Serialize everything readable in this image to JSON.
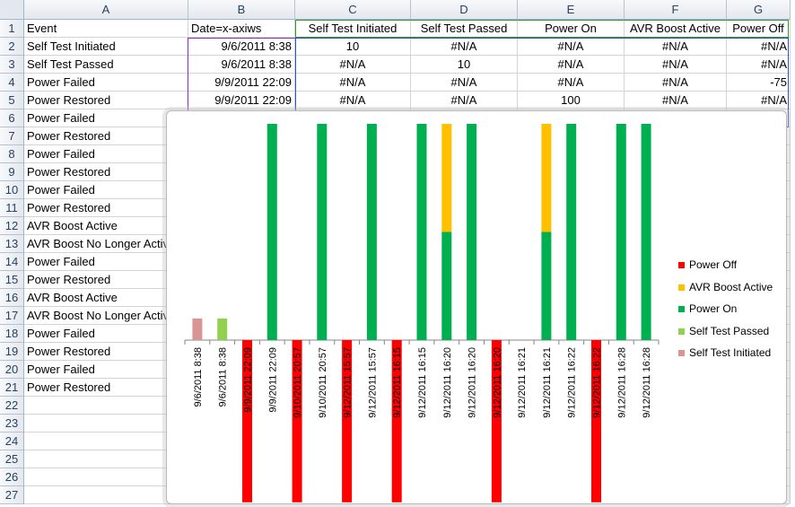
{
  "sheet": {
    "columns": [
      "A",
      "B",
      "C",
      "D",
      "E",
      "F",
      "G"
    ],
    "rows": [
      [
        "Event",
        "Date=x-axiws",
        "Self Test Initiated",
        "Self Test Passed",
        "Power On",
        "AVR Boost Active",
        "Power Off"
      ],
      [
        "Self Test Initiated",
        "9/6/2011 8:38",
        "10",
        "#N/A",
        "#N/A",
        "#N/A",
        "#N/A"
      ],
      [
        "Self Test Passed",
        "9/6/2011 8:38",
        "#N/A",
        "10",
        "#N/A",
        "#N/A",
        "#N/A"
      ],
      [
        "Power Failed",
        "9/9/2011 22:09",
        "#N/A",
        "#N/A",
        "#N/A",
        "#N/A",
        "-75"
      ],
      [
        "Power Restored",
        "9/9/2011 22:09",
        "#N/A",
        "#N/A",
        "100",
        "#N/A",
        "#N/A"
      ],
      [
        "Power Failed",
        "",
        "",
        "",
        "",
        "",
        ""
      ],
      [
        "Power Restored",
        "",
        "",
        "",
        "",
        "",
        ""
      ],
      [
        "Power Failed",
        "",
        "",
        "",
        "",
        "",
        ""
      ],
      [
        "Power Restored",
        "",
        "",
        "",
        "",
        "",
        ""
      ],
      [
        "Power Failed",
        "",
        "",
        "",
        "",
        "",
        ""
      ],
      [
        "Power Restored",
        "",
        "",
        "",
        "",
        "",
        ""
      ],
      [
        "AVR Boost Active",
        "",
        "",
        "",
        "",
        "",
        ""
      ],
      [
        "AVR Boost No Longer Active",
        "",
        "",
        "",
        "",
        "",
        ""
      ],
      [
        "Power Failed",
        "",
        "",
        "",
        "",
        "",
        ""
      ],
      [
        "Power Restored",
        "",
        "",
        "",
        "",
        "",
        ""
      ],
      [
        "AVR Boost Active",
        "",
        "",
        "",
        "",
        "",
        ""
      ],
      [
        "AVR Boost No Longer Active",
        "",
        "",
        "",
        "",
        "",
        ""
      ],
      [
        "Power Failed",
        "",
        "",
        "",
        "",
        "",
        ""
      ],
      [
        "Power Restored",
        "",
        "",
        "",
        "",
        "",
        ""
      ],
      [
        "Power Failed",
        "",
        "",
        "",
        "",
        "",
        ""
      ],
      [
        "Power Restored",
        "",
        "",
        "",
        "",
        "",
        ""
      ],
      [
        "",
        "",
        "",
        "",
        "",
        "",
        ""
      ],
      [
        "",
        "",
        "",
        "",
        "",
        "",
        ""
      ],
      [
        "",
        "",
        "",
        "",
        "",
        "",
        ""
      ],
      [
        "",
        "",
        "",
        "",
        "",
        "",
        ""
      ],
      [
        "",
        "",
        "",
        "",
        "",
        "",
        ""
      ],
      [
        "",
        "",
        "",
        "",
        "",
        "",
        ""
      ]
    ]
  },
  "chart_data": {
    "type": "bar",
    "stacked": true,
    "categories": [
      "9/6/2011 8:38",
      "9/6/2011 8:38",
      "9/9/2011 22:09",
      "9/9/2011 22:09",
      "9/10/2011 20:57",
      "9/10/2011 20:57",
      "9/12/2011 15:57",
      "9/12/2011 15:57",
      "9/12/2011 16:15",
      "9/12/2011 16:15",
      "9/12/2011 16:20",
      "9/12/2011 16:20",
      "9/12/2011 16:20",
      "9/12/2011 16:21",
      "9/12/2011 16:21",
      "9/12/2011 16:22",
      "9/12/2011 16:22",
      "9/12/2011 16:28",
      "9/12/2011 16:28"
    ],
    "series": [
      {
        "name": "Self Test Initiated",
        "color": "#d99594",
        "values": [
          10,
          null,
          null,
          null,
          null,
          null,
          null,
          null,
          null,
          null,
          null,
          null,
          null,
          null,
          null,
          null,
          null,
          null,
          null
        ]
      },
      {
        "name": "Self Test Passed",
        "color": "#92d050",
        "values": [
          null,
          10,
          null,
          null,
          null,
          null,
          null,
          null,
          null,
          null,
          null,
          null,
          null,
          null,
          null,
          null,
          null,
          null,
          null
        ]
      },
      {
        "name": "Power On",
        "color": "#00b050",
        "values": [
          null,
          null,
          null,
          100,
          null,
          100,
          null,
          100,
          null,
          100,
          50,
          100,
          null,
          null,
          50,
          100,
          null,
          100,
          100
        ]
      },
      {
        "name": "AVR Boost Active",
        "color": "#ffc000",
        "values": [
          null,
          null,
          null,
          null,
          null,
          null,
          null,
          null,
          null,
          null,
          50,
          null,
          null,
          null,
          50,
          null,
          null,
          null,
          null
        ]
      },
      {
        "name": "Power Off",
        "color": "#ff0000",
        "values": [
          null,
          null,
          -75,
          null,
          -75,
          null,
          -75,
          null,
          -75,
          null,
          null,
          null,
          -75,
          null,
          null,
          null,
          -75,
          null,
          null
        ]
      }
    ],
    "ylim": [
      -75,
      100
    ],
    "legend": "right",
    "legend_order": [
      "Power Off",
      "AVR Boost Active",
      "Power On",
      "Self Test Passed",
      "Self Test Initiated"
    ],
    "grid": false
  }
}
